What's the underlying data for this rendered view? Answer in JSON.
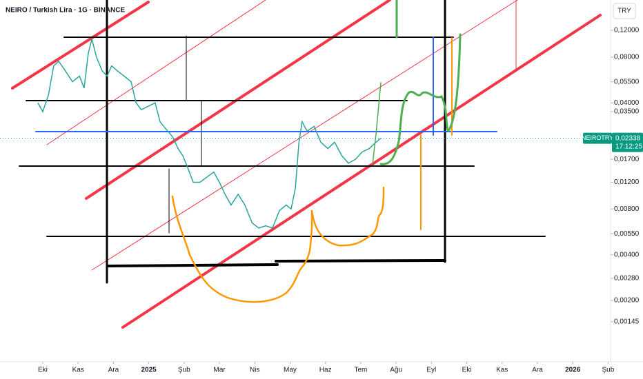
{
  "header": {
    "title": "NEIRO / Turkish Lira · 1G · BINANCE",
    "currency": "TRY"
  },
  "chart_data": {
    "type": "line",
    "log_scale": true,
    "color": "#26a69a",
    "x": [
      -0.14,
      0,
      0.16,
      0.31,
      0.45,
      0.64,
      0.84,
      1.04,
      1.17,
      1.29,
      1.39,
      1.52,
      1.68,
      1.82,
      1.95,
      2.11,
      2.3,
      2.5,
      2.64,
      2.79,
      2.99,
      3.18,
      3.32,
      3.48,
      3.67,
      3.83,
      3.96,
      4.1,
      4.26,
      4.45,
      4.65,
      4.84,
      5.0,
      5.16,
      5.33,
      5.53,
      5.72,
      5.92,
      6.11,
      6.31,
      6.5,
      6.7,
      6.89,
      7.03,
      7.15,
      7.25,
      7.34,
      7.48,
      7.68,
      7.87,
      8.07,
      8.26,
      8.46,
      8.65,
      8.85,
      9.04,
      9.24,
      9.43,
      9.57
    ],
    "values": [
      0.04,
      0.035,
      0.045,
      0.07,
      0.075,
      0.065,
      0.055,
      0.06,
      0.05,
      0.085,
      0.105,
      0.08,
      0.065,
      0.06,
      0.07,
      0.065,
      0.06,
      0.055,
      0.04,
      0.036,
      0.038,
      0.04,
      0.03,
      0.027,
      0.024,
      0.02,
      0.018,
      0.015,
      0.012,
      0.012,
      0.013,
      0.014,
      0.012,
      0.01,
      0.0085,
      0.01,
      0.0085,
      0.0065,
      0.006,
      0.0062,
      0.006,
      0.0078,
      0.0085,
      0.008,
      0.011,
      0.022,
      0.03,
      0.026,
      0.028,
      0.022,
      0.02,
      0.022,
      0.018,
      0.016,
      0.017,
      0.019,
      0.02,
      0.022,
      0.02338
    ],
    "xlim": [
      -1.21,
      16.07
    ],
    "xticks": [
      {
        "value": 0,
        "label": "Eki"
      },
      {
        "value": 1,
        "label": "Kas"
      },
      {
        "value": 2,
        "label": "Ara"
      },
      {
        "value": 3,
        "label": "2025"
      },
      {
        "value": 4,
        "label": "Şub"
      },
      {
        "value": 5,
        "label": "Mar"
      },
      {
        "value": 6,
        "label": "Nis"
      },
      {
        "value": 7,
        "label": "May"
      },
      {
        "value": 8,
        "label": "Haz"
      },
      {
        "value": 9,
        "label": "Tem"
      },
      {
        "value": 10,
        "label": "Ağu"
      },
      {
        "value": 11,
        "label": "Eyl"
      },
      {
        "value": 12,
        "label": "Eki"
      },
      {
        "value": 13,
        "label": "Kas"
      },
      {
        "value": 14,
        "label": "Ara"
      },
      {
        "value": 15,
        "label": "2026"
      },
      {
        "value": 16,
        "label": "Şub"
      }
    ],
    "ylim": [
      0.00079,
      0.19
    ],
    "yticks": [
      {
        "value": 0.12,
        "label": "0,12000"
      },
      {
        "value": 0.08,
        "label": "0,08000"
      },
      {
        "value": 0.055,
        "label": "0,05500"
      },
      {
        "value": 0.04,
        "label": "0,04000"
      },
      {
        "value": 0.035,
        "label": "0,03500"
      },
      {
        "value": 0.017,
        "label": "0,01700"
      },
      {
        "value": 0.012,
        "label": "0,01200"
      },
      {
        "value": 0.008,
        "label": "0,00800"
      },
      {
        "value": 0.0055,
        "label": "0,00550"
      },
      {
        "value": 0.004,
        "label": "0,00400"
      },
      {
        "value": 0.0028,
        "label": "0,00280"
      },
      {
        "value": 0.002,
        "label": "0,00200"
      },
      {
        "value": 0.00145,
        "label": "0,00145"
      }
    ],
    "last_price": {
      "symbol": "NEIROTRY",
      "value": 0.02338,
      "label": "0,02338",
      "countdown": "17:12:25",
      "color": "#089981"
    }
  }
}
